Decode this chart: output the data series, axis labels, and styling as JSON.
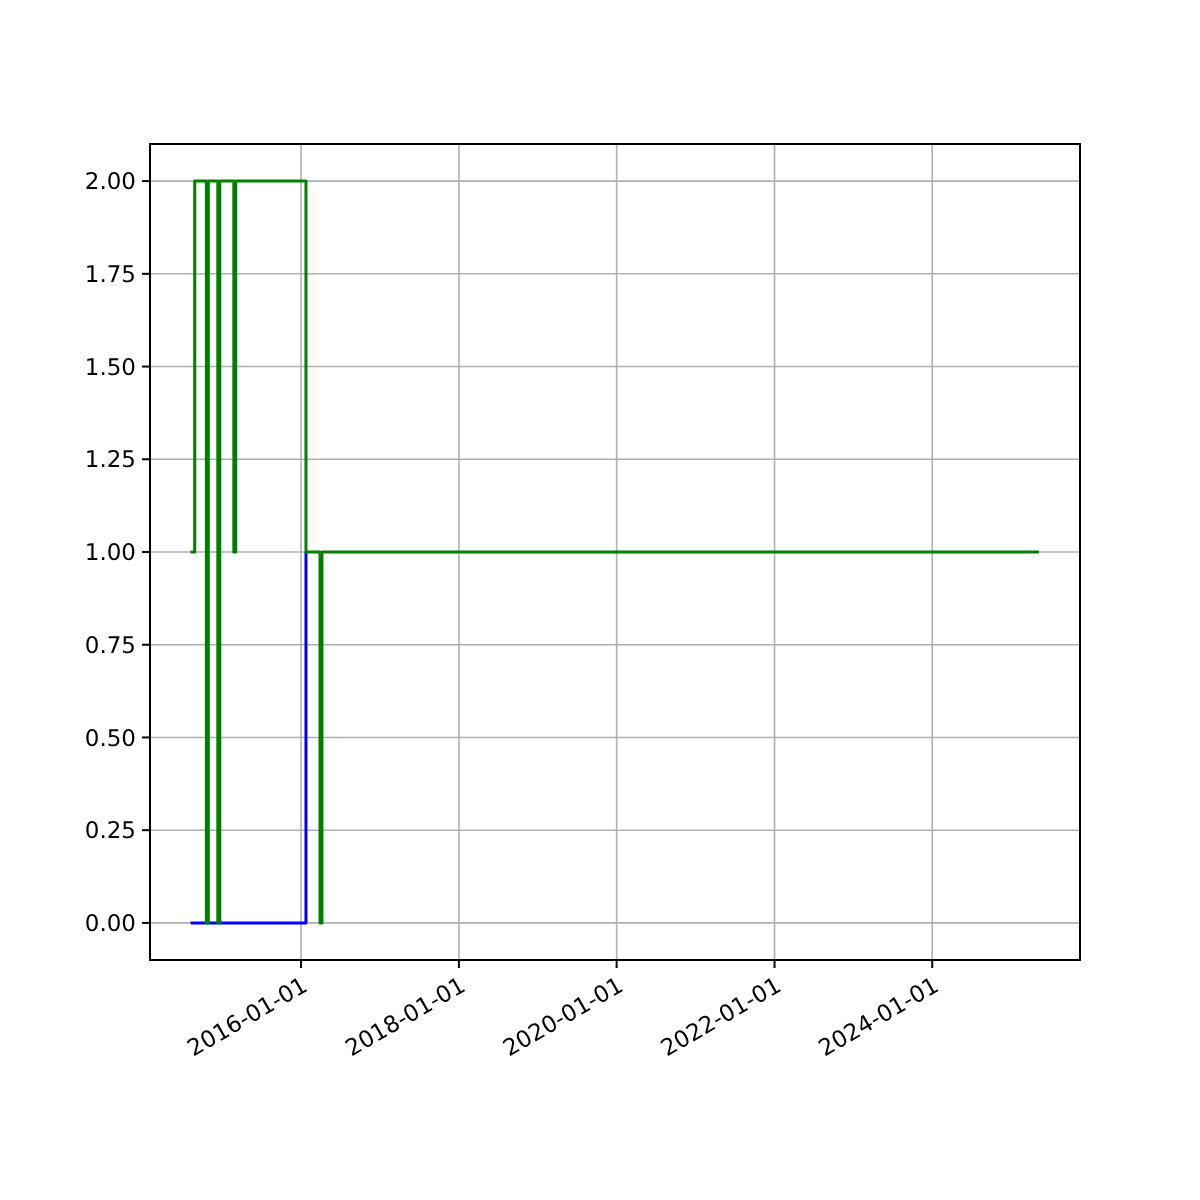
{
  "chart_data": {
    "type": "step",
    "x": [
      "2014-08-08",
      "2014-08-27",
      "2014-10-20",
      "2014-10-29",
      "2014-12-12",
      "2014-12-21",
      "2015-02-24",
      "2015-03-05",
      "2016-01-24",
      "2016-03-29",
      "2016-04-07",
      "2025-05-09"
    ],
    "series": [
      {
        "color": "#0000ff",
        "x": [
          "2014-08-08",
          "2016-01-24"
        ],
        "values": [
          0,
          1
        ]
      },
      {
        "color": "#008000",
        "values": [
          1,
          2,
          0,
          2,
          0,
          2,
          1,
          2,
          1,
          0,
          1,
          1
        ]
      }
    ],
    "xlim": [
      "2014-02-01",
      "2025-11-15"
    ],
    "xticks": [
      "2016-01-01",
      "2018-01-01",
      "2020-01-01",
      "2022-01-01",
      "2024-01-01"
    ],
    "ylim": [
      -0.1,
      2.1
    ],
    "yticks": [
      {
        "value": 0,
        "label": "0.00"
      },
      {
        "value": 0.25,
        "label": "0.25"
      },
      {
        "value": 0.5,
        "label": "0.50"
      },
      {
        "value": 0.75,
        "label": "0.75"
      },
      {
        "value": 1,
        "label": "1.00"
      },
      {
        "value": 1.25,
        "label": "1.25"
      },
      {
        "value": 1.5,
        "label": "1.50"
      },
      {
        "value": 1.75,
        "label": "1.75"
      },
      {
        "value": 2,
        "label": "2.00"
      }
    ],
    "grid": true
  }
}
